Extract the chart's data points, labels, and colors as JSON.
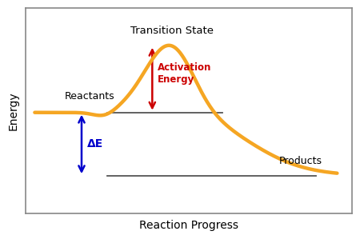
{
  "title": "",
  "xlabel": "Reaction Progress",
  "ylabel": "Energy",
  "curve_color": "#F5A623",
  "curve_linewidth": 3.2,
  "reactants_label": "Reactants",
  "products_label": "Products",
  "transition_label": "Transition State",
  "activation_label": "Activation\nEnergy",
  "delta_e_label": "ΔE",
  "reactants_level": 0.52,
  "products_level": 0.18,
  "transition_level": 0.9,
  "reactants_line_color": "#555555",
  "products_line_color": "#555555",
  "arrow_activation_color": "#CC0000",
  "arrow_delta_color": "#0000CC",
  "background_color": "#ffffff",
  "border_color": "#888888",
  "xlim": [
    -0.3,
    10.5
  ],
  "ylim": [
    -0.02,
    1.08
  ]
}
